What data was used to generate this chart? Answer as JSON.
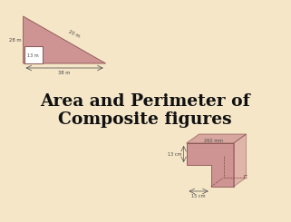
{
  "bg_color": "#f5e6c8",
  "title_line1": "Area and Perimeter of",
  "title_line2": "Composite figures",
  "title_fontsize": 13.5,
  "title_color": "#111111",
  "shape_fill": "#c8858a",
  "shape_edge": "#7a4040",
  "tri_label_28": "28 m",
  "tri_label_20": "20 m",
  "tri_label_13": "13 m",
  "tri_label_38": "38 m",
  "box_label_13cm": "13 cm",
  "box_label_260mm": "260 mm",
  "box_label_15cm": "15 cm",
  "label_color": "#444444",
  "label_fs": 3.8,
  "lw": 0.6
}
